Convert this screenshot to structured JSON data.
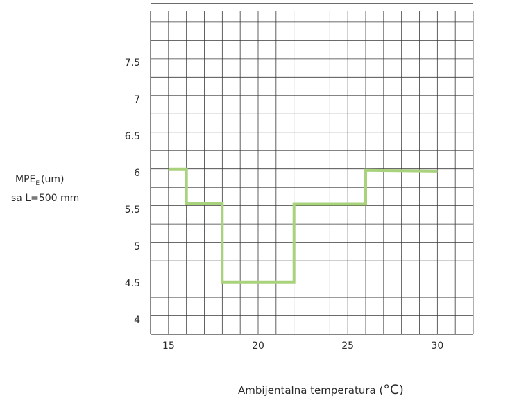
{
  "chart_data": {
    "type": "line",
    "ylabel_main": "MPE",
    "ylabel_sub": "E",
    "ylabel_unit": "(um)",
    "ylabel_line2": "sa L=500 mm",
    "xlabel_text": "Ambijentalna temperatura (",
    "xlabel_unit": "°C",
    "xlabel_close": ")",
    "xlim": [
      14,
      32
    ],
    "ylim": [
      3.8,
      8.2
    ],
    "x_ticks": [
      15,
      20,
      25,
      30
    ],
    "x_tick_labels": [
      "15",
      "20",
      "25",
      "30"
    ],
    "y_ticks": [
      4,
      4.5,
      5,
      5.5,
      6,
      6.5,
      7,
      7.5
    ],
    "y_tick_labels": [
      "4",
      "4.5",
      "5",
      "5.5",
      "6",
      "6.5",
      "7",
      "7.5"
    ],
    "grid": true,
    "line_color": "#a9d27d",
    "series": [
      {
        "x": [
          15,
          16,
          16,
          18,
          18,
          22,
          22,
          26,
          26,
          30
        ],
        "y": [
          6.05,
          6.05,
          5.58,
          5.58,
          4.51,
          4.51,
          5.57,
          5.57,
          6.03,
          6.02
        ]
      }
    ]
  }
}
